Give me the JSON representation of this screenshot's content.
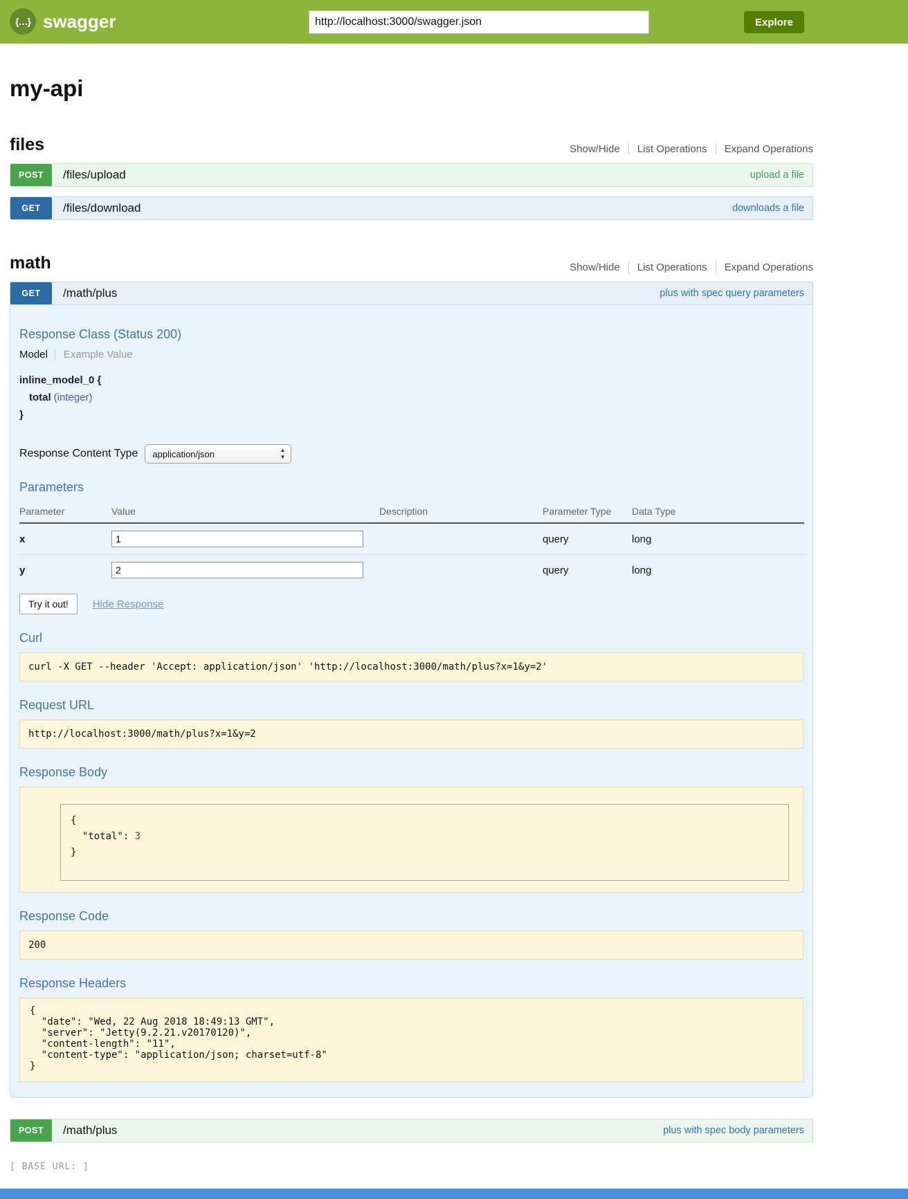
{
  "header": {
    "brand": "swagger",
    "logo_glyph": "{…}",
    "url_value": "http://localhost:3000/swagger.json",
    "explore_label": "Explore"
  },
  "title": "my-api",
  "section_controls": {
    "show_hide": "Show/Hide",
    "list_operations": "List Operations",
    "expand_operations": "Expand Operations"
  },
  "files_section": {
    "heading": "files"
  },
  "math_section": {
    "heading": "math"
  },
  "ops": {
    "files_upload": {
      "method": "POST",
      "path": "/files/upload",
      "summary": "upload a file"
    },
    "files_download": {
      "method": "GET",
      "path": "/files/download",
      "summary": "downloads a file"
    },
    "math_get": {
      "method": "GET",
      "path": "/math/plus",
      "summary": "plus with spec query parameters"
    },
    "math_post": {
      "method": "POST",
      "path": "/math/plus",
      "summary": "plus with spec body parameters"
    }
  },
  "detail": {
    "response_class_heading": "Response Class (Status 200)",
    "tab_model": "Model",
    "tab_example": "Example Value",
    "model_open": "inline_model_0 {",
    "model_prop_name": "total",
    "model_prop_type": "(integer)",
    "model_close": "}",
    "response_content_type_label": "Response Content Type",
    "response_content_type_value": "application/json",
    "parameters_heading": "Parameters",
    "param_columns": [
      "Parameter",
      "Value",
      "Description",
      "Parameter Type",
      "Data Type"
    ],
    "params": [
      {
        "name": "x",
        "value": "1",
        "description": "",
        "param_type": "query",
        "data_type": "long"
      },
      {
        "name": "y",
        "value": "2",
        "description": "",
        "param_type": "query",
        "data_type": "long"
      }
    ],
    "try_it_out": "Try it out!",
    "hide_response": "Hide Response",
    "curl_heading": "Curl",
    "curl_command": "curl -X GET --header 'Accept: application/json' 'http://localhost:3000/math/plus?x=1&y=2'",
    "request_url_heading": "Request URL",
    "request_url_value": "http://localhost:3000/math/plus?x=1&y=2",
    "response_body_heading": "Response Body",
    "response_body": {
      "open": "{",
      "entry": "  \"total\": ",
      "value": "3",
      "close": "}"
    },
    "response_code_heading": "Response Code",
    "response_code_value": "200",
    "response_headers_heading": "Response Headers",
    "response_headers_lines": [
      "{",
      "  \"date\": \"Wed, 22 Aug 2018 18:49:13 GMT\",",
      "  \"server\": \"Jetty(9.2.21.v20170120)\",",
      "  \"content-length\": \"11\",",
      "  \"content-type\": \"application/json; charset=utf-8\"",
      "}"
    ]
  },
  "footer": {
    "base_url": "[ BASE URL: ]"
  },
  "colors": {
    "header_green": "#8bb63a",
    "logo_circle": "#64882c",
    "explore_green": "#547f00",
    "get_blue": "#2a6ba6",
    "post_green": "#49a54c",
    "panel_bg": "#ebf3fa",
    "heading_blue": "#4577a5",
    "code_bg": "#fcf6db",
    "link_blue": "#3572b0",
    "link_green": "#3ea454",
    "type_purple": "#5555aa",
    "num_red": "#992e2e",
    "bottom_bar_blue": "#4a90d9"
  }
}
